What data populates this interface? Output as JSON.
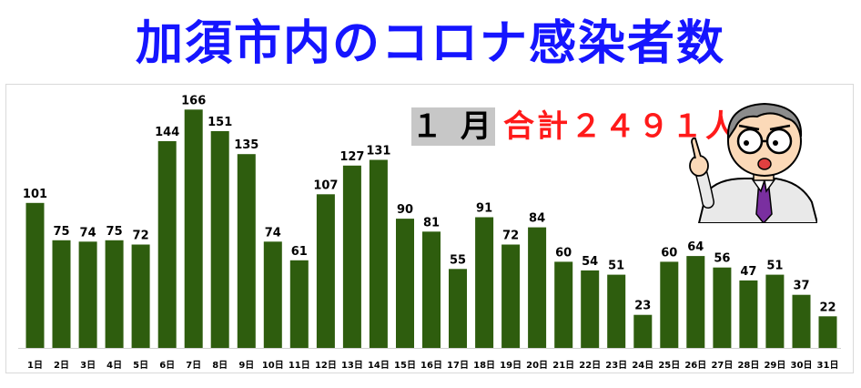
{
  "title": "加須市内のコロナ感染者数",
  "month_label": "１ 月",
  "total_label": "合計２４９１人",
  "colors": {
    "title": "#1515ff",
    "bar": "#2e5d0e",
    "total": "#ff1a1a",
    "month_bg": "#c7c7c7"
  },
  "mascot_icon": "pointing-man-icon",
  "chart_data": {
    "type": "bar",
    "categories": [
      "1日",
      "2日",
      "3日",
      "4日",
      "5日",
      "6日",
      "7日",
      "8日",
      "9日",
      "10日",
      "11日",
      "12日",
      "13日",
      "14日",
      "15日",
      "16日",
      "17日",
      "18日",
      "19日",
      "20日",
      "21日",
      "22日",
      "23日",
      "24日",
      "25日",
      "26日",
      "27日",
      "28日",
      "29日",
      "30日",
      "31日"
    ],
    "values": [
      101,
      75,
      74,
      75,
      72,
      144,
      166,
      151,
      135,
      74,
      61,
      107,
      127,
      131,
      90,
      81,
      55,
      91,
      72,
      84,
      60,
      54,
      51,
      23,
      60,
      64,
      56,
      47,
      51,
      37,
      22
    ],
    "ylim": [
      0,
      170
    ],
    "grid": false,
    "legend": "none"
  }
}
